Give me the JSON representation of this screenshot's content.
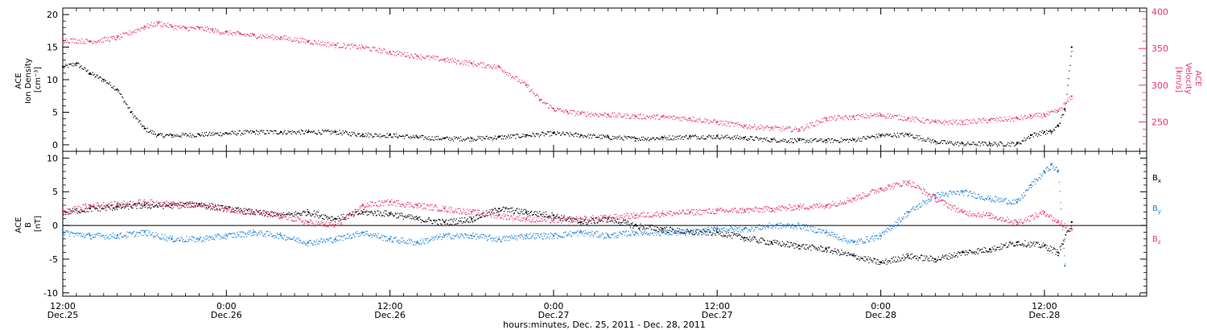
{
  "colors": {
    "black": "#000000",
    "pink": "#e8336b",
    "blue": "#1a7fd8"
  },
  "xlabel": "hours:minutes, Dec. 25, 2011 - Dec. 28, 2011",
  "chart_data": [
    {
      "type": "scatter",
      "panel": "top",
      "ylabel_left": [
        "ACE",
        "Ion Density",
        "[cm⁻³]"
      ],
      "ylabel_right": [
        "ACE",
        "Velocity",
        "[km/s]"
      ],
      "x_unit": "hours since 12:00 Dec. 25, 2011",
      "xlim": [
        0,
        79.5
      ],
      "ylim_left": [
        -1,
        21
      ],
      "yticks_left": [
        "0",
        "5",
        "10",
        "15",
        "20"
      ],
      "ylim_right": [
        210,
        405
      ],
      "yticks_right": [
        "250",
        "300",
        "350",
        "400"
      ],
      "series": [
        {
          "color": "#000000",
          "axis": "left",
          "x": [
            0,
            1,
            2,
            3,
            4,
            5,
            6,
            7,
            8,
            10,
            12,
            14,
            16,
            18,
            20,
            22,
            24,
            26,
            28,
            30,
            32,
            34,
            36,
            38,
            40,
            42,
            44,
            46,
            48,
            50,
            52,
            54,
            56,
            58,
            60,
            62,
            64,
            66,
            68,
            70,
            71,
            72,
            72.5,
            73,
            73.5,
            74
          ],
          "y": [
            12,
            12.5,
            11,
            10,
            8.5,
            5,
            2.5,
            1.5,
            1.5,
            1.6,
            1.8,
            2.0,
            2.0,
            2.0,
            2.0,
            1.6,
            1.5,
            1.2,
            1.0,
            1.0,
            1.2,
            1.5,
            1.8,
            1.5,
            1.2,
            1.0,
            1.1,
            1.3,
            1.3,
            1.1,
            0.8,
            0.7,
            0.7,
            0.8,
            1.5,
            1.6,
            0.5,
            0.2,
            0.2,
            0.2,
            1.5,
            2.0,
            2.0,
            3.0,
            5.5,
            15
          ]
        },
        {
          "color": "#e8336b",
          "axis": "right",
          "x": [
            0,
            2,
            4,
            6,
            7,
            8,
            9,
            10,
            11,
            12,
            13,
            14,
            16,
            18,
            20,
            22,
            24,
            26,
            28,
            30,
            32,
            34,
            35,
            36,
            37,
            38,
            40,
            42,
            44,
            46,
            48,
            50,
            52,
            54,
            56,
            58,
            60,
            62,
            64,
            66,
            68,
            70,
            71,
            72,
            73,
            74
          ],
          "y": [
            362,
            360,
            365,
            380,
            385,
            380,
            378,
            378,
            375,
            372,
            370,
            368,
            365,
            360,
            355,
            352,
            345,
            340,
            335,
            330,
            325,
            300,
            280,
            268,
            264,
            262,
            260,
            258,
            257,
            255,
            250,
            245,
            242,
            240,
            255,
            257,
            260,
            255,
            250,
            250,
            253,
            255,
            258,
            260,
            265,
            285
          ]
        }
      ]
    },
    {
      "type": "scatter",
      "panel": "bottom",
      "ylabel_left": [
        "ACE",
        "B",
        "[nT]"
      ],
      "x_unit": "hours since 12:00 Dec. 25, 2011",
      "xlim": [
        0,
        79.5
      ],
      "ylim_left": [
        -10.5,
        11
      ],
      "yticks_left": [
        "-10",
        "-5",
        "0",
        "5",
        "10"
      ],
      "zero_line": true,
      "legend_position": "right",
      "xticks": [
        {
          "x": 0,
          "time": "12:00",
          "date": "Dec.25"
        },
        {
          "x": 12,
          "time": "0:00",
          "date": "Dec.26"
        },
        {
          "x": 24,
          "time": "12:00",
          "date": "Dec.26"
        },
        {
          "x": 36,
          "time": "0:00",
          "date": "Dec.27"
        },
        {
          "x": 48,
          "time": "12:00",
          "date": "Dec.27"
        },
        {
          "x": 60,
          "time": "0:00",
          "date": "Dec.28"
        },
        {
          "x": 72,
          "time": "12:00",
          "date": "Dec.28"
        }
      ],
      "series": [
        {
          "name": "Bx",
          "color": "#000000",
          "x": [
            0,
            2,
            4,
            6,
            8,
            10,
            12,
            14,
            16,
            18,
            20,
            22,
            24,
            26,
            28,
            30,
            32,
            34,
            36,
            38,
            40,
            42,
            44,
            46,
            48,
            50,
            52,
            54,
            56,
            58,
            60,
            62,
            64,
            66,
            68,
            70,
            72,
            73,
            74
          ],
          "y": [
            2,
            2.5,
            2.8,
            3,
            3,
            3.2,
            2.5,
            2.0,
            1.5,
            2.0,
            1.0,
            2.0,
            1.8,
            1.0,
            0.5,
            1.0,
            2.5,
            2.0,
            1.5,
            0.5,
            1.0,
            0.0,
            -0.5,
            -1.0,
            -1.0,
            -1.8,
            -2.5,
            -3.0,
            -3.5,
            -4.5,
            -5.5,
            -4.5,
            -5.0,
            -4.0,
            -3.5,
            -2.5,
            -3.0,
            -4.0,
            0.5
          ]
        },
        {
          "name": "By",
          "color": "#1a7fd8",
          "x": [
            0,
            2,
            4,
            6,
            8,
            10,
            12,
            14,
            16,
            18,
            20,
            22,
            24,
            26,
            28,
            30,
            32,
            34,
            36,
            38,
            40,
            42,
            44,
            46,
            48,
            50,
            52,
            54,
            56,
            58,
            60,
            62,
            64,
            66,
            68,
            70,
            71,
            72,
            72.5,
            73,
            73.5
          ],
          "y": [
            -1.0,
            -1.5,
            -1.5,
            -1.0,
            -2.0,
            -2.0,
            -1.5,
            -1.0,
            -1.5,
            -2.5,
            -2.0,
            -1.0,
            -2.0,
            -2.5,
            -1.5,
            -1.5,
            -2.0,
            -1.5,
            -1.5,
            -1.0,
            -1.5,
            -1.0,
            -1.0,
            -1.0,
            -0.5,
            -0.5,
            0.0,
            0.0,
            -1.0,
            -2.5,
            -1.5,
            2.0,
            4.5,
            5.0,
            4.0,
            3.5,
            6.0,
            8.0,
            9.0,
            8.0,
            -6.0
          ]
        },
        {
          "name": "Bz",
          "color": "#e8336b",
          "x": [
            0,
            2,
            4,
            6,
            8,
            10,
            12,
            14,
            16,
            18,
            20,
            22,
            24,
            26,
            28,
            30,
            32,
            34,
            36,
            38,
            40,
            42,
            44,
            46,
            48,
            50,
            52,
            54,
            56,
            58,
            60,
            62,
            64,
            66,
            68,
            70,
            72,
            73,
            74
          ],
          "y": [
            2.0,
            3.0,
            3.2,
            3.5,
            3.2,
            3.0,
            2.5,
            2.0,
            1.5,
            0.5,
            0.0,
            3.0,
            3.5,
            3.0,
            2.5,
            2.0,
            1.5,
            1.0,
            0.8,
            1.0,
            1.2,
            1.5,
            1.8,
            2.0,
            2.2,
            2.3,
            2.5,
            2.8,
            3.0,
            4.0,
            5.5,
            6.5,
            4.0,
            2.0,
            1.5,
            0.5,
            2.0,
            0.5,
            -0.5
          ]
        }
      ],
      "legend": [
        {
          "base": "B",
          "sub": "x",
          "color": "#000000"
        },
        {
          "base": "B",
          "sub": "y",
          "color": "#1a7fd8"
        },
        {
          "base": "B",
          "sub": "z",
          "color": "#e8336b"
        }
      ]
    }
  ]
}
